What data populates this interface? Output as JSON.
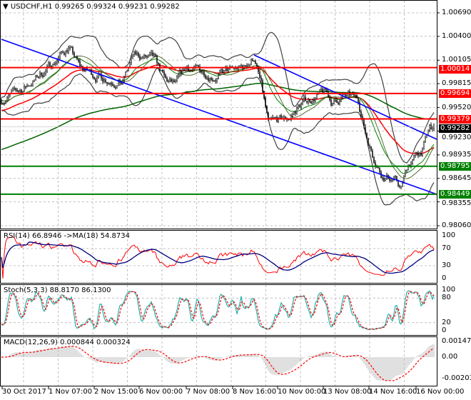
{
  "header": {
    "symbol": "USDCHF,H1",
    "ohlc": "0.99265 0.99324 0.99231 0.99282"
  },
  "colors": {
    "red_level": "#ff0000",
    "green_level": "#008000",
    "trendline": "#0000ff",
    "current": "#000000",
    "rsi": "#ff0000",
    "rsi_ma": "#000080",
    "stoch_main": "#20b2aa",
    "stoch_signal": "#ff0000",
    "macd_hist": "#c0c0c0",
    "macd_signal": "#ff0000",
    "ma_fast": "#ff0000",
    "ma_slow": "#006400"
  },
  "chart_data": {
    "type": "candlestick",
    "title": "USDCHF,H1",
    "ohlc_last": {
      "open": 0.99265,
      "high": 0.99324,
      "low": 0.99231,
      "close": 0.99282
    },
    "ylim": [
      0.9806,
      1.0069
    ],
    "y_ticks": [
      "1.00690",
      "1.00400",
      "1.00105",
      "0.99815",
      "0.99520",
      "0.99230",
      "0.98935",
      "0.98645",
      "0.98355",
      "0.98060"
    ],
    "x_ticks": [
      "30 Oct 2017",
      "1 Nov 07:00",
      "2 Nov 15:00",
      "6 Nov 00:00",
      "7 Nov 08:00",
      "8 Nov 16:00",
      "10 Nov 00:00",
      "13 Nov 08:00",
      "14 Nov 16:00",
      "16 Nov 00:00"
    ],
    "close_path": [
      [
        0,
        0.99613
      ],
      [
        15,
        0.99746
      ],
      [
        30,
        0.99966
      ],
      [
        40,
        1.00143
      ],
      [
        47,
        1.00275
      ],
      [
        55,
        1.0001
      ],
      [
        65,
        0.99922
      ],
      [
        75,
        0.99878
      ],
      [
        85,
        0.99834
      ],
      [
        92,
        1.00143
      ],
      [
        100,
        1.00143
      ],
      [
        107,
        1.00099
      ],
      [
        115,
        0.99834
      ],
      [
        122,
        0.9979
      ],
      [
        130,
        1.0001
      ],
      [
        140,
        0.99966
      ],
      [
        150,
        0.99922
      ],
      [
        160,
        0.99966
      ],
      [
        170,
        1.0001
      ],
      [
        177,
        1.00143
      ],
      [
        182,
        0.9979
      ],
      [
        187,
        0.99304
      ],
      [
        195,
        0.99349
      ],
      [
        202,
        0.99393
      ],
      [
        210,
        0.99569
      ],
      [
        220,
        0.99657
      ],
      [
        227,
        0.99702
      ],
      [
        232,
        0.99569
      ],
      [
        240,
        0.99657
      ],
      [
        250,
        0.99613
      ],
      [
        255,
        0.99216
      ],
      [
        260,
        0.98951
      ],
      [
        267,
        0.98687
      ],
      [
        275,
        0.98643
      ],
      [
        280,
        0.9851
      ],
      [
        285,
        0.98819
      ],
      [
        290,
        0.98907
      ],
      [
        295,
        0.98996
      ],
      [
        300,
        0.9926
      ],
      [
        303,
        0.99282
      ]
    ],
    "levels": [
      {
        "price": "1.00014",
        "color": "red"
      },
      {
        "price": "0.99694",
        "color": "red"
      },
      {
        "price": "0.99379",
        "color": "red"
      },
      {
        "price": "0.98795",
        "color": "green"
      },
      {
        "price": "0.98449",
        "color": "green"
      }
    ],
    "current_price": "0.99282",
    "trendlines": [
      {
        "from": [
          0,
          1.00363
        ],
        "to": [
          306,
          0.98448
        ]
      },
      {
        "from": [
          177,
          1.00169
        ],
        "to": [
          306,
          0.99128
        ]
      }
    ],
    "indicators": {
      "rsi": {
        "label": "RSI(14) 66.8946  ->MA(18) 54.8734",
        "ticks": [
          "100",
          "70",
          "30",
          "0"
        ]
      },
      "stoch": {
        "label": "Stoch(5,3,3) 88.8170 86.1300",
        "ticks": [
          "100",
          "80",
          "20",
          "0"
        ]
      },
      "macd": {
        "label": "MACD(12,26,9) 0.000844 0.000324",
        "ticks": [
          "0.001474",
          "0.00",
          "-0.002032"
        ]
      }
    }
  }
}
